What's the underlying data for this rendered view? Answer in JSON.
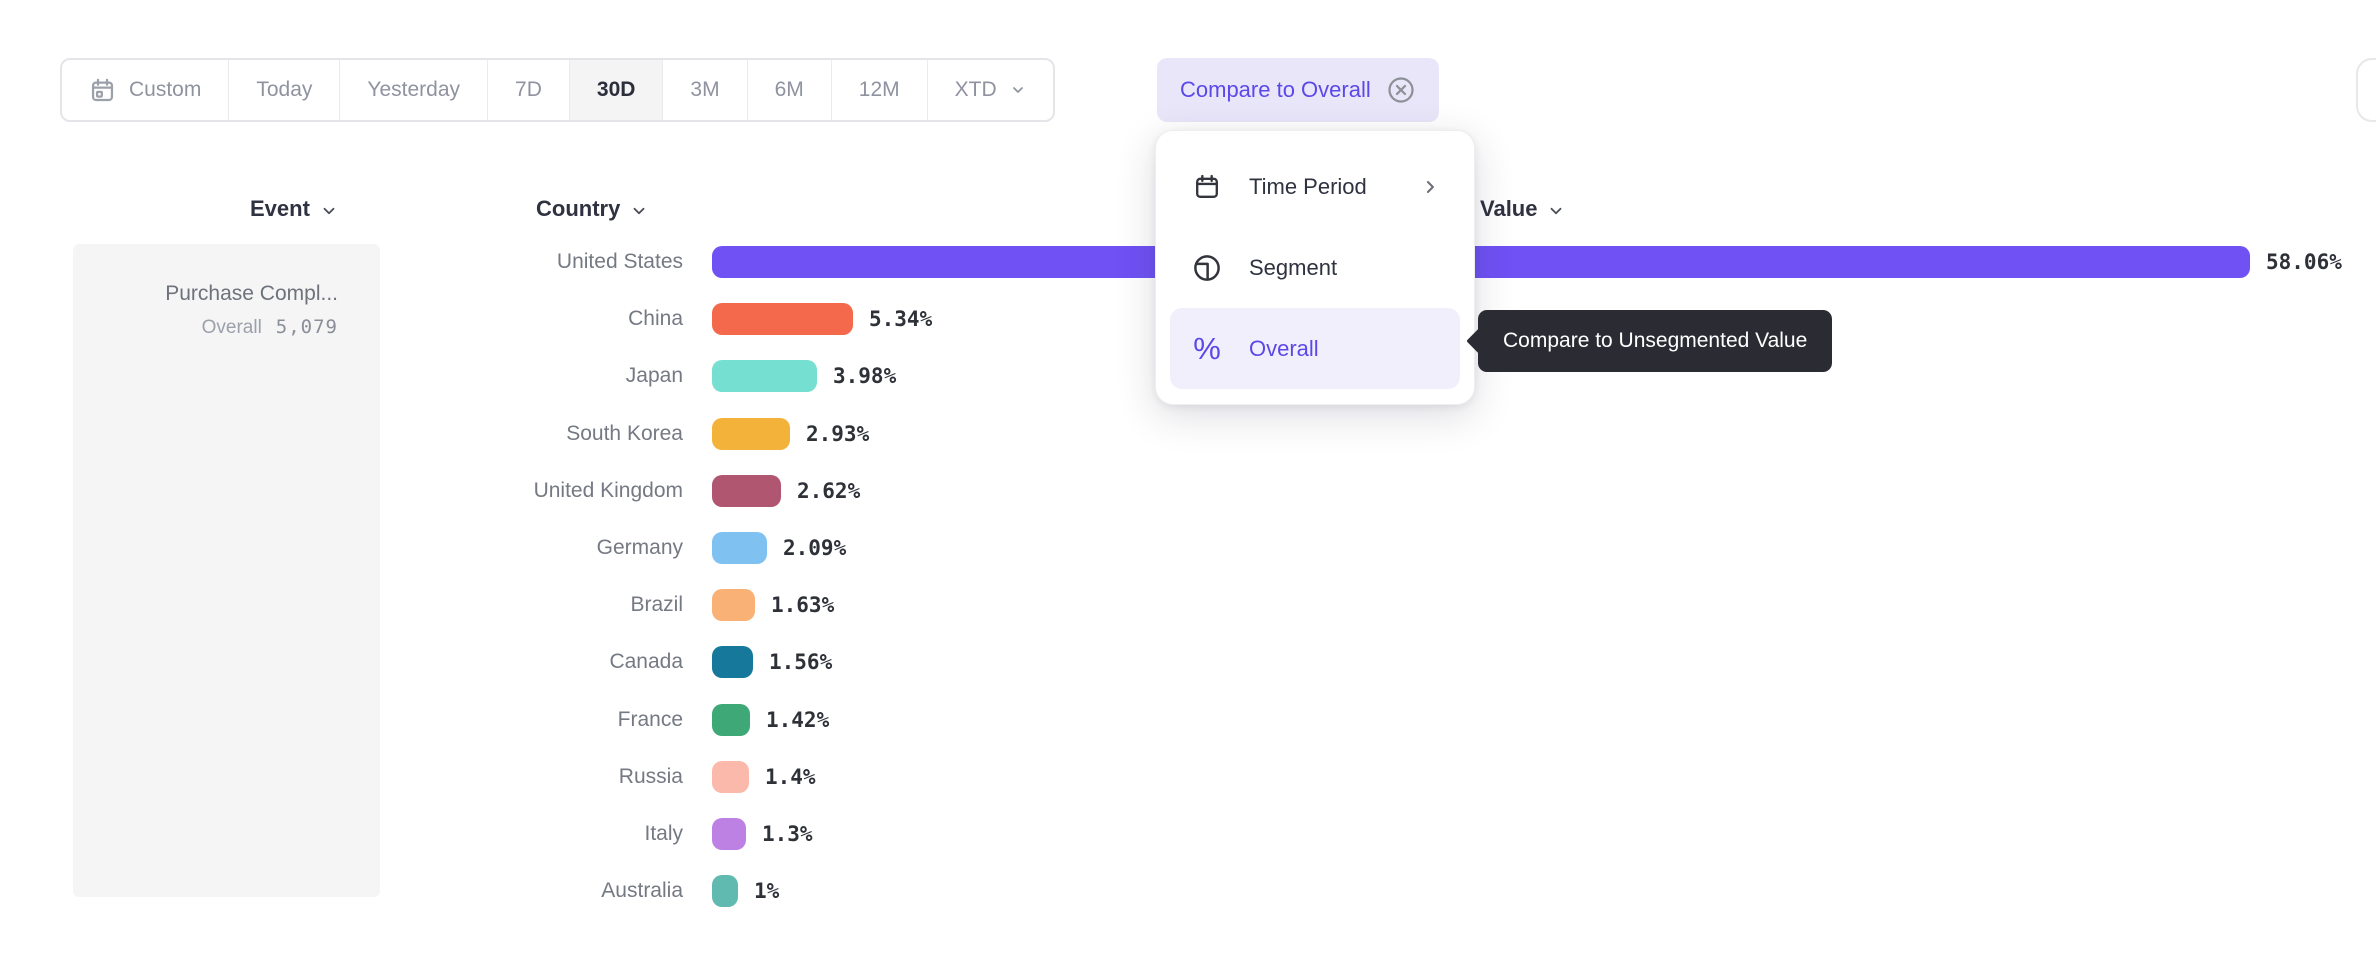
{
  "toolbar": {
    "items": [
      {
        "label": "Custom",
        "icon": "calendar",
        "selected": false,
        "chevron": false
      },
      {
        "label": "Today",
        "icon": null,
        "selected": false,
        "chevron": false
      },
      {
        "label": "Yesterday",
        "icon": null,
        "selected": false,
        "chevron": false
      },
      {
        "label": "7D",
        "icon": null,
        "selected": false,
        "chevron": false
      },
      {
        "label": "30D",
        "icon": null,
        "selected": true,
        "chevron": false
      },
      {
        "label": "3M",
        "icon": null,
        "selected": false,
        "chevron": false
      },
      {
        "label": "6M",
        "icon": null,
        "selected": false,
        "chevron": false
      },
      {
        "label": "12M",
        "icon": null,
        "selected": false,
        "chevron": false
      },
      {
        "label": "XTD",
        "icon": null,
        "selected": false,
        "chevron": true
      }
    ]
  },
  "compare_chip": {
    "label": "Compare to Overall",
    "close_icon": "circle-x-icon"
  },
  "menu": {
    "items": [
      {
        "label": "Time Period",
        "icon": "calendar-icon",
        "submenu": true,
        "active": false
      },
      {
        "label": "Segment",
        "icon": "segment-icon",
        "submenu": false,
        "active": false
      },
      {
        "label": "Overall",
        "icon": "percent-icon",
        "submenu": false,
        "active": true
      }
    ]
  },
  "tooltip": {
    "text": "Compare to Unsegmented Value"
  },
  "columns": {
    "event": "Event",
    "country": "Country",
    "value": "Value"
  },
  "event_panel": {
    "name": "Purchase Compl...",
    "overall_label": "Overall",
    "overall_value": "5,079"
  },
  "chart_data": {
    "type": "bar",
    "orientation": "horizontal",
    "title": "",
    "xlabel": "Value",
    "ylabel": "Country",
    "xlim": [
      0,
      58.06
    ],
    "categories": [
      "United States",
      "China",
      "Japan",
      "South Korea",
      "United Kingdom",
      "Germany",
      "Brazil",
      "Canada",
      "France",
      "Russia",
      "Italy",
      "Australia"
    ],
    "values": [
      58.06,
      5.34,
      3.98,
      2.93,
      2.62,
      2.09,
      1.63,
      1.56,
      1.42,
      1.4,
      1.3,
      1.0
    ],
    "value_labels": [
      "58.06%",
      "5.34%",
      "3.98%",
      "2.93%",
      "2.62%",
      "2.09%",
      "1.63%",
      "1.56%",
      "1.42%",
      "1.4%",
      "1.3%",
      "1%"
    ],
    "colors": [
      "#6F51F4",
      "#F4684C",
      "#75DFD1",
      "#F3B33A",
      "#B05671",
      "#7FC2F2",
      "#F9B175",
      "#16799B",
      "#3EA977",
      "#FBB9AB",
      "#BD81E4",
      "#61BAAF"
    ],
    "legend": false,
    "grid": false
  },
  "theme": {
    "accent_purple": "#5A49E8",
    "chip_bg": "#E9E6FA",
    "tooltip_bg": "#2B2C33",
    "panel_bg": "#F5F5F6",
    "selected_tab_bg": "#F4F4F5",
    "muted_text": "#8F93A0",
    "dark_text": "#2F3240"
  }
}
